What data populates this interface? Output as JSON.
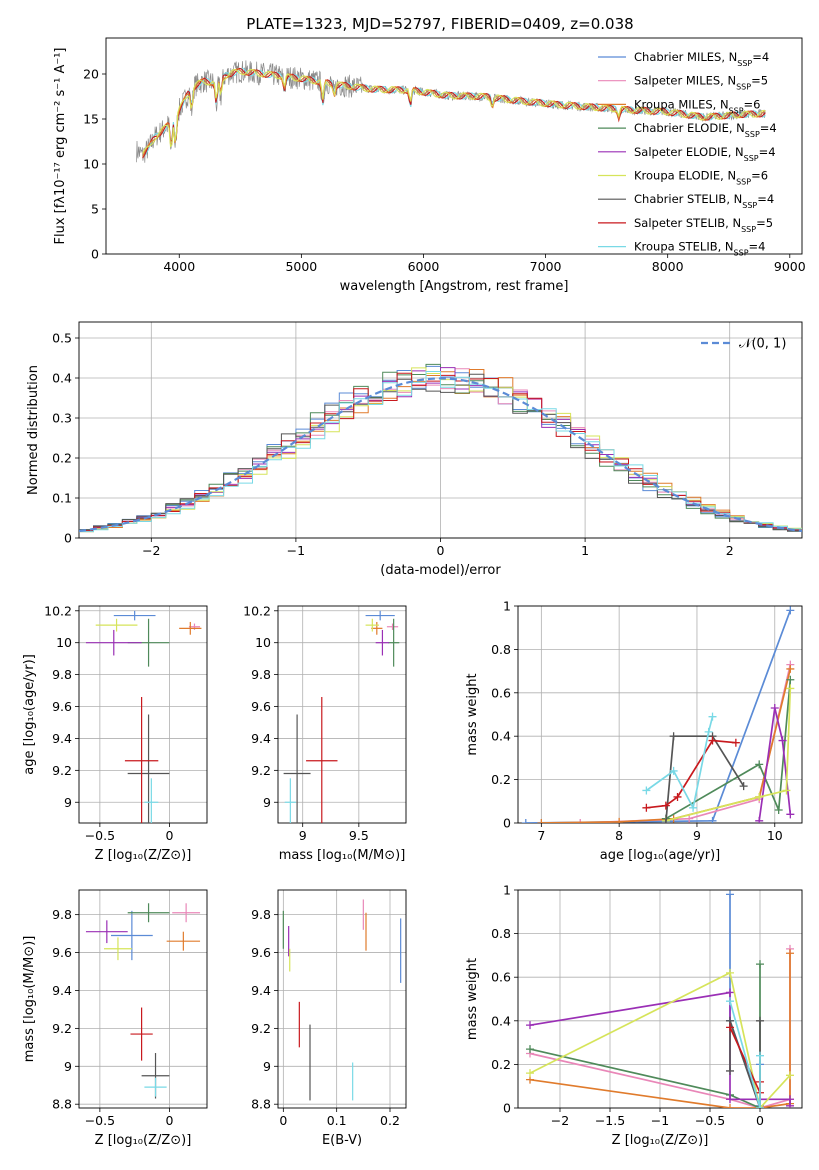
{
  "title": "PLATE=1323, MJD=52797, FIBERID=0409, z=0.038",
  "colors": {
    "Chabrier MILES": "#5b8bd6",
    "Salpeter MILES": "#e987b8",
    "Kroupa MILES": "#e07b2c",
    "Chabrier ELODIE": "#4f8a5a",
    "Salpeter ELODIE": "#9a2fb5",
    "Kroupa ELODIE": "#d6e45a",
    "Chabrier STELIB": "#555555",
    "Salpeter STELIB": "#c8191e",
    "Kroupa STELIB": "#79d9e6",
    "normal": "#5b8bd6"
  },
  "chart_data": [
    {
      "type": "line",
      "id": "spectrum",
      "xlabel": "wavelength [Angstrom, rest frame]",
      "ylabel": "Flux [fλ10⁻¹⁷ erg cm⁻² s⁻¹ A⁻¹]",
      "xlim": [
        3400,
        9100
      ],
      "ylim": [
        0,
        24
      ],
      "xticks": [
        4000,
        5000,
        6000,
        7000,
        8000,
        9000
      ],
      "yticks": [
        0,
        5,
        10,
        15,
        20
      ],
      "grid": false,
      "legend_position": "right",
      "legend": [
        {
          "name": "Chabrier MILES",
          "nssp": "4"
        },
        {
          "name": "Salpeter MILES",
          "nssp": "5"
        },
        {
          "name": "Kroupa MILES",
          "nssp": "6"
        },
        {
          "name": "Chabrier ELODIE",
          "nssp": "4"
        },
        {
          "name": "Salpeter ELODIE",
          "nssp": "4"
        },
        {
          "name": "Kroupa ELODIE",
          "nssp": "6"
        },
        {
          "name": "Chabrier STELIB",
          "nssp": "4"
        },
        {
          "name": "Salpeter STELIB",
          "nssp": "5"
        },
        {
          "name": "Kroupa STELIB",
          "nssp": "4"
        }
      ],
      "data_continuum": {
        "x": [
          3650,
          3700,
          3750,
          3800,
          3900,
          4000,
          4100,
          4200,
          4300,
          4400,
          4500,
          4700,
          5000,
          5300,
          5600,
          5900,
          6200,
          6500,
          6800,
          7100,
          7400,
          7700,
          8000,
          8300,
          8600,
          8800
        ],
        "y": [
          11.5,
          11.0,
          11.8,
          13.0,
          14.2,
          16.0,
          18.5,
          19.2,
          19.0,
          20.0,
          20.3,
          20.0,
          19.5,
          18.8,
          18.3,
          18.2,
          17.6,
          17.5,
          17.0,
          16.6,
          16.3,
          16.0,
          15.8,
          15.2,
          15.5,
          15.6
        ]
      }
    },
    {
      "type": "line",
      "id": "residuals",
      "xlabel": "(data-model)/error",
      "ylabel": "Normed distribution",
      "xlim": [
        -2.5,
        2.5
      ],
      "ylim": [
        0,
        0.54
      ],
      "xticks": [
        -2,
        -1,
        0,
        1,
        2
      ],
      "yticks": [
        0.0,
        0.1,
        0.2,
        0.3,
        0.4,
        0.5
      ],
      "grid": true,
      "legend_position": "upper right",
      "reference_label": "𝒩(0, 1)"
    },
    {
      "type": "scatter",
      "id": "age-vs-Z",
      "xlabel": "Z [log₁₀(Z/Z⊙)]",
      "ylabel": "age  [log₁₀(age/yr)]",
      "xlim": [
        -0.65,
        0.27
      ],
      "ylim": [
        8.87,
        10.23
      ],
      "xticks": [
        -0.5,
        0.0
      ],
      "yticks": [
        9.0,
        9.2,
        9.4,
        9.6,
        9.8,
        10.0,
        10.2
      ],
      "grid": true,
      "points": [
        {
          "series": "Chabrier MILES",
          "x": -0.25,
          "y": 10.17,
          "xerr": 0.15,
          "yerr": 0.03
        },
        {
          "series": "Salpeter MILES",
          "x": 0.18,
          "y": 10.1,
          "xerr": 0.04,
          "yerr": 0.02
        },
        {
          "series": "Kroupa MILES",
          "x": 0.15,
          "y": 10.09,
          "xerr": 0.08,
          "yerr": 0.04
        },
        {
          "series": "Chabrier ELODIE",
          "x": -0.15,
          "y": 10.0,
          "xerr": 0.15,
          "yerr": 0.15
        },
        {
          "series": "Salpeter ELODIE",
          "x": -0.4,
          "y": 10.0,
          "xerr": 0.2,
          "yerr": 0.08
        },
        {
          "series": "Kroupa ELODIE",
          "x": -0.38,
          "y": 10.11,
          "xerr": 0.15,
          "yerr": 0.04
        },
        {
          "series": "Chabrier STELIB",
          "x": -0.15,
          "y": 9.18,
          "xerr": 0.15,
          "yerr": 0.37
        },
        {
          "series": "Salpeter STELIB",
          "x": -0.2,
          "y": 9.26,
          "xerr": 0.12,
          "yerr": 0.4
        },
        {
          "series": "Kroupa STELIB",
          "x": -0.13,
          "y": 9.0,
          "xerr": 0.05,
          "yerr": 0.15
        }
      ]
    },
    {
      "type": "scatter",
      "id": "age-vs-mass",
      "xlabel": "mass [log₁₀(M/M⊙)]",
      "ylabel": "",
      "xlim": [
        8.78,
        9.92
      ],
      "ylim": [
        8.87,
        10.23
      ],
      "xticks": [
        9.0,
        9.5
      ],
      "yticks": [
        9.0,
        9.2,
        9.4,
        9.6,
        9.8,
        10.0,
        10.2
      ],
      "grid": true,
      "points": [
        {
          "series": "Chabrier MILES",
          "x": 9.69,
          "y": 10.17,
          "xerr": 0.13,
          "yerr": 0.03
        },
        {
          "series": "Salpeter MILES",
          "x": 9.8,
          "y": 10.1,
          "xerr": 0.05,
          "yerr": 0.02
        },
        {
          "series": "Kroupa MILES",
          "x": 9.66,
          "y": 10.09,
          "xerr": 0.05,
          "yerr": 0.04
        },
        {
          "series": "Chabrier ELODIE",
          "x": 9.81,
          "y": 10.0,
          "xerr": 0.05,
          "yerr": 0.15
        },
        {
          "series": "Salpeter ELODIE",
          "x": 9.71,
          "y": 10.0,
          "xerr": 0.06,
          "yerr": 0.08
        },
        {
          "series": "Kroupa ELODIE",
          "x": 9.62,
          "y": 10.11,
          "xerr": 0.06,
          "yerr": 0.04
        },
        {
          "series": "Chabrier STELIB",
          "x": 8.95,
          "y": 9.18,
          "xerr": 0.12,
          "yerr": 0.37
        },
        {
          "series": "Salpeter STELIB",
          "x": 9.17,
          "y": 9.26,
          "xerr": 0.14,
          "yerr": 0.4
        },
        {
          "series": "Kroupa STELIB",
          "x": 8.89,
          "y": 9.0,
          "xerr": 0.05,
          "yerr": 0.15
        }
      ]
    },
    {
      "type": "line",
      "id": "weight-vs-age",
      "xlabel": "age  [log₁₀(age/yr)]",
      "ylabel": "mass weight",
      "xlim": [
        6.7,
        10.35
      ],
      "ylim": [
        0,
        1.0
      ],
      "xticks": [
        7,
        8,
        9,
        10
      ],
      "yticks": [
        0.0,
        0.2,
        0.4,
        0.6,
        0.8,
        1.0
      ],
      "grid": true,
      "series": [
        {
          "name": "Chabrier MILES",
          "x": [
            6.8,
            9.2,
            10.2
          ],
          "y": [
            0.0,
            0.01,
            0.98
          ]
        },
        {
          "name": "Salpeter MILES",
          "x": [
            7.5,
            8.9,
            9.8,
            10.2
          ],
          "y": [
            0.0,
            0.02,
            0.11,
            0.73
          ]
        },
        {
          "name": "Kroupa MILES",
          "x": [
            7.0,
            8.0,
            8.7,
            9.8,
            10.2
          ],
          "y": [
            0.0,
            0.005,
            0.02,
            0.12,
            0.71
          ]
        },
        {
          "name": "Chabrier ELODIE",
          "x": [
            8.6,
            9.8,
            10.05,
            10.2
          ],
          "y": [
            0.02,
            0.27,
            0.06,
            0.66
          ]
        },
        {
          "name": "Salpeter ELODIE",
          "x": [
            9.8,
            10.0,
            10.1,
            10.2
          ],
          "y": [
            0.01,
            0.53,
            0.38,
            0.04
          ]
        },
        {
          "name": "Kroupa ELODIE",
          "x": [
            8.6,
            9.8,
            10.15,
            10.2
          ],
          "y": [
            0.01,
            0.12,
            0.15,
            0.62
          ]
        },
        {
          "name": "Chabrier STELIB",
          "x": [
            8.6,
            8.7,
            9.2,
            9.6
          ],
          "y": [
            0.0,
            0.4,
            0.4,
            0.17
          ]
        },
        {
          "name": "Salpeter STELIB",
          "x": [
            8.35,
            8.6,
            8.75,
            9.2,
            9.5
          ],
          "y": [
            0.07,
            0.08,
            0.12,
            0.38,
            0.37
          ]
        },
        {
          "name": "Kroupa STELIB",
          "x": [
            8.35,
            8.7,
            8.95,
            9.15,
            9.2
          ],
          "y": [
            0.15,
            0.24,
            0.07,
            0.42,
            0.49
          ]
        }
      ]
    },
    {
      "type": "scatter",
      "id": "mass-vs-Z",
      "xlabel": "Z [log₁₀(Z/Z⊙)]",
      "ylabel": "mass [log₁₀(M/M⊙)]",
      "xlim": [
        -0.65,
        0.27
      ],
      "ylim": [
        8.78,
        9.93
      ],
      "xticks": [
        -0.5,
        0.0
      ],
      "yticks": [
        8.8,
        9.0,
        9.2,
        9.4,
        9.6,
        9.8
      ],
      "grid": true,
      "points": [
        {
          "series": "Chabrier MILES",
          "x": -0.27,
          "y": 9.69,
          "xerr": 0.15,
          "yerr": 0.13
        },
        {
          "series": "Salpeter MILES",
          "x": 0.12,
          "y": 9.81,
          "xerr": 0.1,
          "yerr": 0.05
        },
        {
          "series": "Kroupa MILES",
          "x": 0.1,
          "y": 9.66,
          "xerr": 0.12,
          "yerr": 0.05
        },
        {
          "series": "Chabrier ELODIE",
          "x": -0.15,
          "y": 9.81,
          "xerr": 0.15,
          "yerr": 0.05
        },
        {
          "series": "Salpeter ELODIE",
          "x": -0.45,
          "y": 9.71,
          "xerr": 0.15,
          "yerr": 0.06
        },
        {
          "series": "Kroupa ELODIE",
          "x": -0.37,
          "y": 9.62,
          "xerr": 0.1,
          "yerr": 0.06
        },
        {
          "series": "Chabrier STELIB",
          "x": -0.1,
          "y": 8.95,
          "xerr": 0.1,
          "yerr": 0.12
        },
        {
          "series": "Salpeter STELIB",
          "x": -0.2,
          "y": 9.17,
          "xerr": 0.08,
          "yerr": 0.14
        },
        {
          "series": "Kroupa STELIB",
          "x": -0.1,
          "y": 8.89,
          "xerr": 0.08,
          "yerr": 0.05
        }
      ]
    },
    {
      "type": "scatter",
      "id": "mass-vs-EBV",
      "xlabel": "E(B-V)",
      "ylabel": "",
      "xlim": [
        -0.01,
        0.23
      ],
      "ylim": [
        8.78,
        9.93
      ],
      "xticks": [
        0.0,
        0.1,
        0.2
      ],
      "yticks": [
        8.8,
        9.0,
        9.2,
        9.4,
        9.6,
        9.8
      ],
      "grid": true,
      "points": [
        {
          "series": "Chabrier MILES",
          "x": 0.22,
          "y": 9.61,
          "xerr": 0.0,
          "yerr": 0.17
        },
        {
          "series": "Salpeter MILES",
          "x": 0.15,
          "y": 9.8,
          "xerr": 0.0,
          "yerr": 0.08
        },
        {
          "series": "Kroupa MILES",
          "x": 0.155,
          "y": 9.71,
          "xerr": 0.0,
          "yerr": 0.1
        },
        {
          "series": "Chabrier ELODIE",
          "x": 0.0,
          "y": 9.72,
          "xerr": 0.0,
          "yerr": 0.1
        },
        {
          "series": "Salpeter ELODIE",
          "x": 0.01,
          "y": 9.66,
          "xerr": 0.0,
          "yerr": 0.08
        },
        {
          "series": "Kroupa ELODIE",
          "x": 0.012,
          "y": 9.56,
          "xerr": 0.0,
          "yerr": 0.06
        },
        {
          "series": "Chabrier STELIB",
          "x": 0.05,
          "y": 9.02,
          "xerr": 0.0,
          "yerr": 0.2
        },
        {
          "series": "Salpeter STELIB",
          "x": 0.03,
          "y": 9.22,
          "xerr": 0.0,
          "yerr": 0.12
        },
        {
          "series": "Kroupa STELIB",
          "x": 0.13,
          "y": 8.92,
          "xerr": 0.0,
          "yerr": 0.1
        }
      ]
    },
    {
      "type": "line",
      "id": "weight-vs-Z",
      "xlabel": "Z [log₁₀(Z/Z⊙)]",
      "ylabel": "mass weight",
      "xlim": [
        -2.42,
        0.42
      ],
      "ylim": [
        0,
        1.0
      ],
      "xticks": [
        -2.0,
        -1.5,
        -1.0,
        -0.5,
        0.0
      ],
      "yticks": [
        0.0,
        0.2,
        0.4,
        0.6,
        0.8,
        1.0
      ],
      "grid": true,
      "series": [
        {
          "name": "Chabrier MILES",
          "x": [
            -0.3,
            -0.3,
            0.0,
            0.0
          ],
          "y": [
            0.98,
            0.4,
            0.01,
            0.2
          ]
        },
        {
          "name": "Salpeter MILES",
          "x": [
            -2.3,
            -0.3,
            0.0,
            0.3,
            0.3
          ],
          "y": [
            0.25,
            0.04,
            0.0,
            0.04,
            0.73
          ]
        },
        {
          "name": "Kroupa MILES",
          "x": [
            -2.3,
            -0.3,
            0.0,
            0.3,
            0.3
          ],
          "y": [
            0.13,
            0.0,
            0.0,
            0.02,
            0.71
          ]
        },
        {
          "name": "Chabrier ELODIE",
          "x": [
            -2.3,
            -0.3,
            0.0,
            0.0
          ],
          "y": [
            0.27,
            0.06,
            0.0,
            0.66
          ]
        },
        {
          "name": "Salpeter ELODIE",
          "x": [
            -2.3,
            -0.3,
            -0.3,
            0.3,
            0.3
          ],
          "y": [
            0.38,
            0.53,
            0.04,
            0.04,
            0.01
          ]
        },
        {
          "name": "Kroupa ELODIE",
          "x": [
            -2.3,
            -0.3,
            0.0,
            0.3
          ],
          "y": [
            0.16,
            0.62,
            0.0,
            0.15
          ]
        },
        {
          "name": "Chabrier STELIB",
          "x": [
            -0.3,
            -0.3,
            0.0,
            0.0
          ],
          "y": [
            0.17,
            0.4,
            0.0,
            0.4
          ]
        },
        {
          "name": "Salpeter STELIB",
          "x": [
            -0.3,
            0.0,
            0.0
          ],
          "y": [
            0.37,
            0.07,
            0.12
          ]
        },
        {
          "name": "Kroupa STELIB",
          "x": [
            -0.3,
            0.0,
            0.0
          ],
          "y": [
            0.49,
            0.0,
            0.24
          ]
        }
      ]
    }
  ]
}
